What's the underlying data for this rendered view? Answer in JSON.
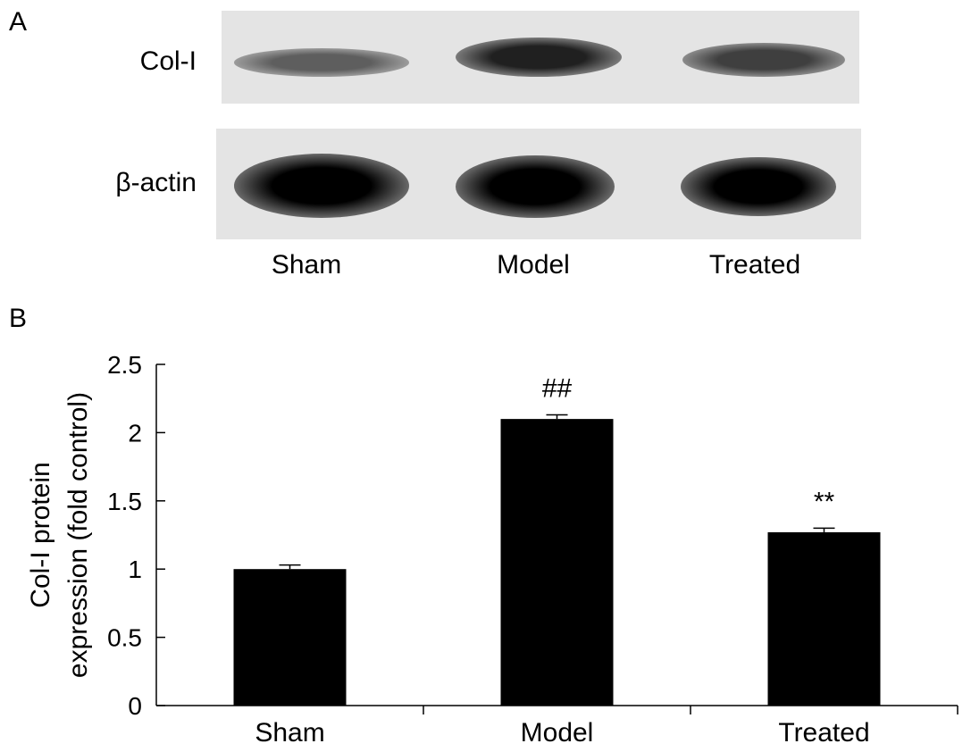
{
  "panel_a": {
    "label": "A",
    "rows": [
      {
        "name": "Col-I",
        "band_intensity": [
          0.55,
          0.85,
          0.7
        ]
      },
      {
        "name": "β-actin",
        "band_intensity": [
          1.0,
          1.0,
          1.0
        ]
      }
    ],
    "lanes": [
      "Sham",
      "Model",
      "Treated"
    ],
    "colors": {
      "background": "#e4e4e4",
      "band": "#000000"
    }
  },
  "panel_b": {
    "label": "B"
  },
  "chart_data": {
    "type": "bar",
    "categories": [
      "Sham",
      "Model",
      "Treated"
    ],
    "values": [
      1.0,
      2.1,
      1.27
    ],
    "errors": [
      0.03,
      0.03,
      0.03
    ],
    "annotations": [
      "",
      "##",
      "**"
    ],
    "ylabel_line1": "Col-I protein",
    "ylabel_line2": "expression (fold control)",
    "xlabel": "",
    "ylim": [
      0,
      2.5
    ],
    "yticks": [
      0,
      0.5,
      1,
      1.5,
      2,
      2.5
    ],
    "ytick_labels": [
      "0",
      "0.5",
      "1",
      "1.5",
      "2",
      "2.5"
    ],
    "bar_color": "#000000",
    "grid": false
  }
}
